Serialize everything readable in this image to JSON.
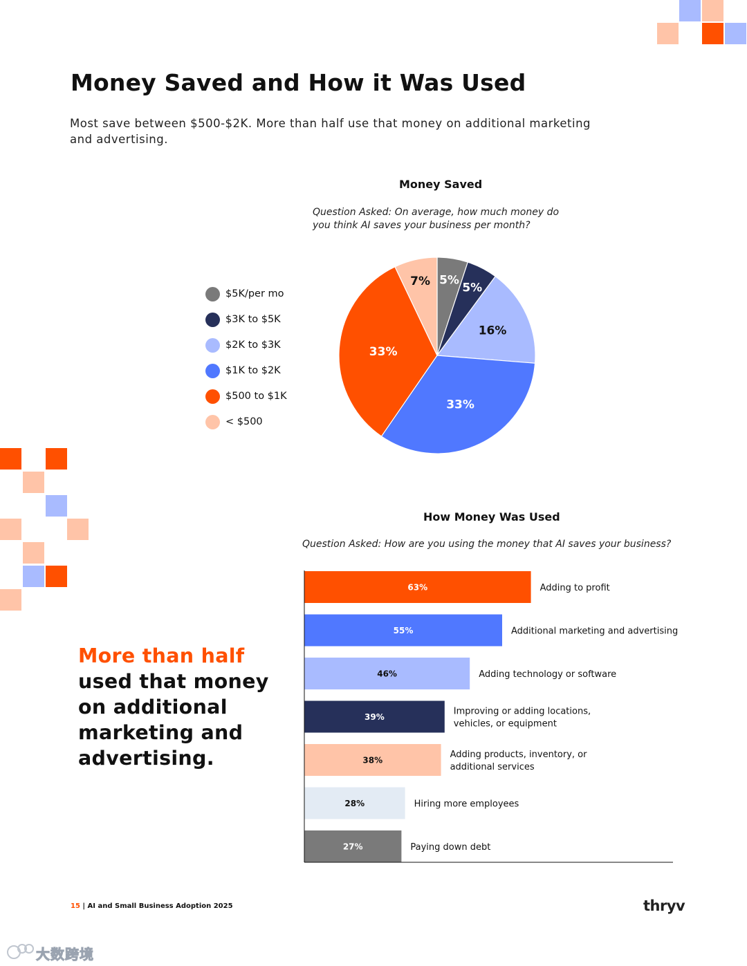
{
  "header": {
    "title": "Money Saved and How it Was Used",
    "subtitle": "Most save between $500-$2K. More than half use that money on additional marketing and advertising."
  },
  "pie_section": {
    "title": "Money Saved",
    "question": "Question Asked: On average, how much money do you think AI saves your business per month?"
  },
  "bar_section": {
    "title": "How Money Was Used",
    "question": "Question Asked: How are you using the money that AI saves your business?"
  },
  "callout": {
    "highlight": "More than half",
    "rest": "used that money on additional marketing and advertising."
  },
  "footer": {
    "page_number": "15",
    "separator": " | ",
    "report_title": "AI and Small Business Adoption 2025",
    "brand": "thryv"
  },
  "watermark": {
    "text": "大数跨境"
  },
  "colors": {
    "orange": "#ff5000",
    "blue": "#5078ff",
    "periwinkle": "#a9bbff",
    "navy": "#26305a",
    "peach": "#ffc4a8",
    "pale": "#e3ebf4",
    "gray": "#7a7a7a"
  },
  "chart_data": [
    {
      "type": "pie",
      "title": "Money Saved",
      "categories": [
        "$5K/per mo",
        "$3K to $5K",
        "$2K to $3K",
        "$1K to $2K",
        "$500 to $1K",
        "< $500"
      ],
      "values": [
        5,
        5,
        16,
        33,
        33,
        7
      ],
      "labels": [
        "5%",
        "5%",
        "16%",
        "33%",
        "33%",
        "7%"
      ],
      "colors": [
        "#7a7a7a",
        "#26305a",
        "#a9bbff",
        "#5078ff",
        "#ff5000",
        "#ffc4a8"
      ],
      "label_colors": [
        "#ffffff",
        "#ffffff",
        "#111111",
        "#ffffff",
        "#ffffff",
        "#111111"
      ],
      "legend_position": "left"
    },
    {
      "type": "bar",
      "orientation": "horizontal",
      "title": "How Money Was Used",
      "categories": [
        "Adding to profit",
        "Additional marketing and advertising",
        "Adding technology or software",
        "Improving or adding locations, vehicles, or equipment",
        "Adding products, inventory, or additional services",
        "Hiring more employees",
        "Paying down debt"
      ],
      "category_lines": [
        [
          "Adding to profit"
        ],
        [
          "Additional marketing and advertising"
        ],
        [
          "Adding technology or software"
        ],
        [
          "Improving or adding locations,",
          "vehicles, or equipment"
        ],
        [
          "Adding products, inventory, or",
          "additional services"
        ],
        [
          "Hiring more employees"
        ],
        [
          "Paying down debt"
        ]
      ],
      "values": [
        63,
        55,
        46,
        39,
        38,
        28,
        27
      ],
      "labels": [
        "63%",
        "55%",
        "46%",
        "39%",
        "38%",
        "28%",
        "27%"
      ],
      "colors": [
        "#ff5000",
        "#5078ff",
        "#a9bbff",
        "#26305a",
        "#ffc4a8",
        "#e3ebf4",
        "#7a7a7a"
      ],
      "label_colors": [
        "#ffffff",
        "#ffffff",
        "#111111",
        "#ffffff",
        "#111111",
        "#111111",
        "#ffffff"
      ],
      "xlim": [
        0,
        100
      ]
    }
  ]
}
